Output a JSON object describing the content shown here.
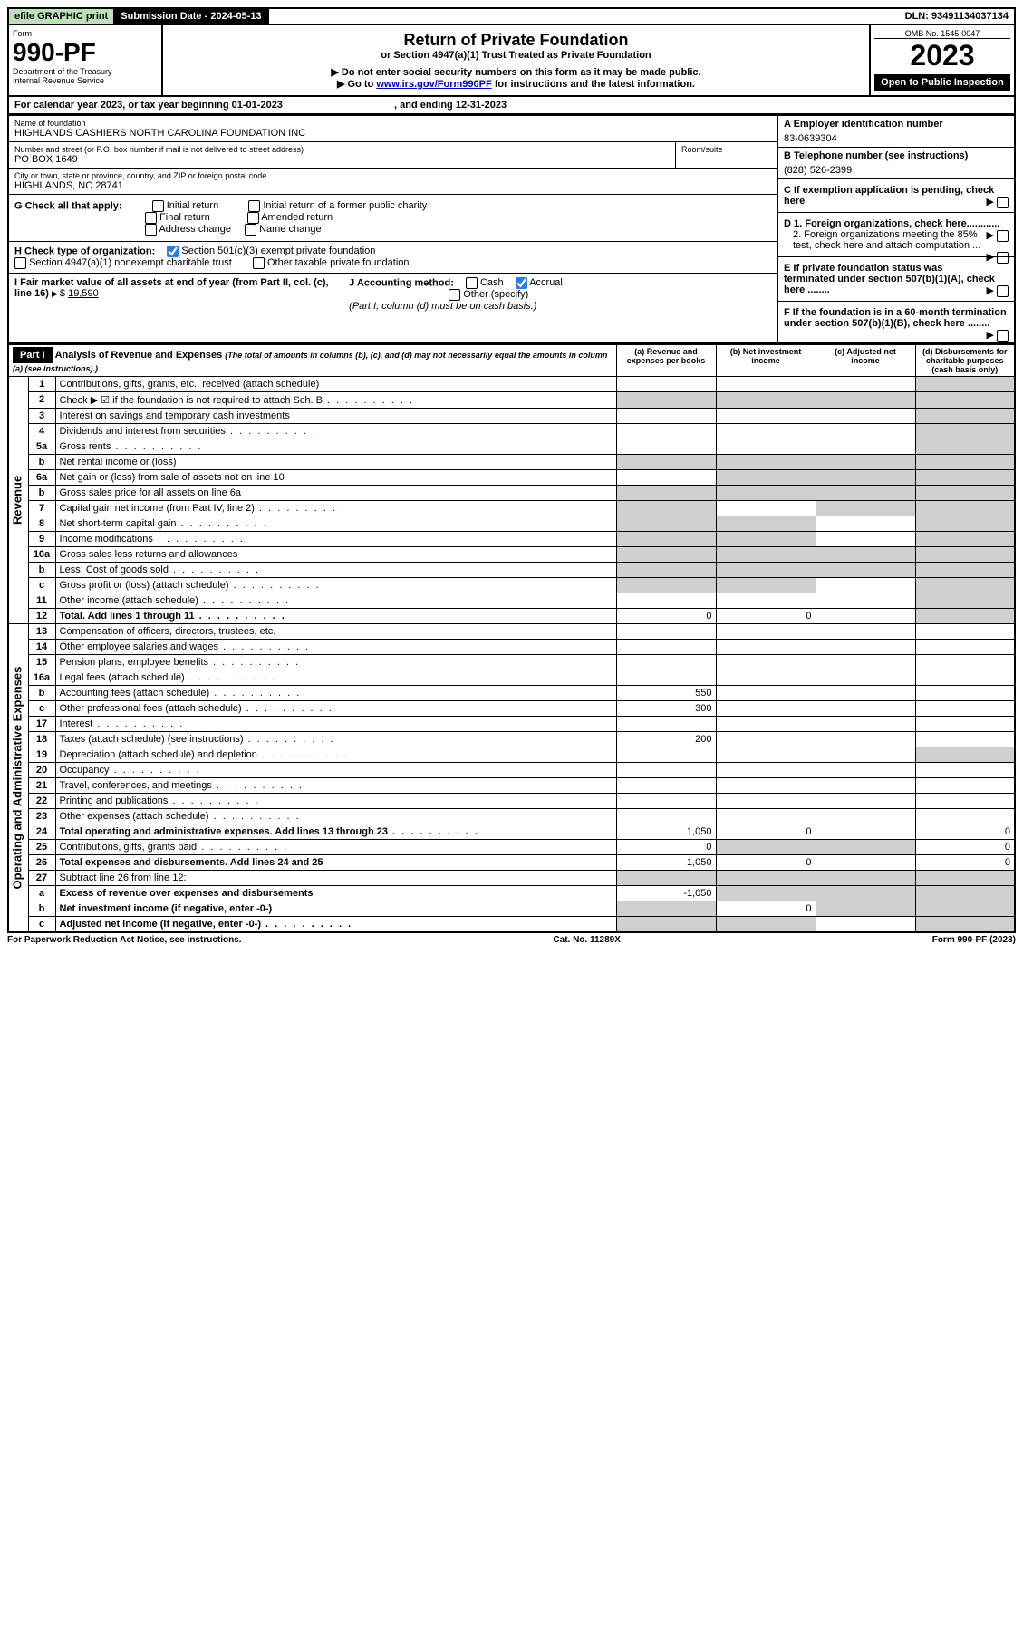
{
  "topbar": {
    "efile": "efile GRAPHIC print",
    "submission_label": "Submission Date - ",
    "submission_date": "2024-05-13",
    "dln_label": "DLN: ",
    "dln": "93491134037134"
  },
  "header": {
    "form_word": "Form",
    "form_no": "990-PF",
    "dept": "Department of the Treasury",
    "irs": "Internal Revenue Service",
    "title": "Return of Private Foundation",
    "subtitle": "or Section 4947(a)(1) Trust Treated as Private Foundation",
    "note1": "▶ Do not enter social security numbers on this form as it may be made public.",
    "note2_pre": "▶ Go to ",
    "note2_link": "www.irs.gov/Form990PF",
    "note2_post": " for instructions and the latest information.",
    "omb": "OMB No. 1545-0047",
    "year": "2023",
    "open": "Open to Public Inspection"
  },
  "calendar": {
    "text_pre": "For calendar year 2023, or tax year beginning ",
    "begin": "01-01-2023",
    "mid": " , and ending ",
    "end": "12-31-2023"
  },
  "ident": {
    "name_label": "Name of foundation",
    "name": "HIGHLANDS CASHIERS NORTH CAROLINA FOUNDATION INC",
    "addr_label": "Number and street (or P.O. box number if mail is not delivered to street address)",
    "addr": "PO BOX 1649",
    "room_label": "Room/suite",
    "room": "",
    "city_label": "City or town, state or province, country, and ZIP or foreign postal code",
    "city": "HIGHLANDS, NC  28741",
    "ein_label": "A Employer identification number",
    "ein": "83-0639304",
    "phone_label": "B Telephone number (see instructions)",
    "phone": "(828) 526-2399",
    "c_label": "C If exemption application is pending, check here",
    "d1": "D 1. Foreign organizations, check here............",
    "d2": "2. Foreign organizations meeting the 85% test, check here and attach computation ...",
    "e": "E If private foundation status was terminated under section 507(b)(1)(A), check here ........",
    "f": "F If the foundation is in a 60-month termination under section 507(b)(1)(B), check here ........"
  },
  "g": {
    "label": "G Check all that apply:",
    "initial": "Initial return",
    "final": "Final return",
    "address": "Address change",
    "initial_former": "Initial return of a former public charity",
    "amended": "Amended return",
    "name_change": "Name change"
  },
  "h": {
    "label": "H Check type of organization:",
    "opt1": "Section 501(c)(3) exempt private foundation",
    "opt2": "Section 4947(a)(1) nonexempt charitable trust",
    "opt3": "Other taxable private foundation"
  },
  "i": {
    "label": "I Fair market value of all assets at end of year (from Part II, col. (c), line 16)",
    "arrow": "▶$",
    "value": "19,590"
  },
  "j": {
    "label": "J Accounting method:",
    "cash": "Cash",
    "accrual": "Accrual",
    "other": "Other (specify)",
    "note": "(Part I, column (d) must be on cash basis.)"
  },
  "part1": {
    "hdr": "Part I",
    "title": "Analysis of Revenue and Expenses",
    "sub": "(The total of amounts in columns (b), (c), and (d) may not necessarily equal the amounts in column (a) (see instructions).)",
    "cols": {
      "a": "(a) Revenue and expenses per books",
      "b": "(b) Net investment income",
      "c": "(c) Adjusted net income",
      "d": "(d) Disbursements for charitable purposes (cash basis only)"
    }
  },
  "sections": {
    "revenue": "Revenue",
    "opex": "Operating and Administrative Expenses"
  },
  "lines": [
    {
      "no": "1",
      "desc": "Contributions, gifts, grants, etc., received (attach schedule)",
      "a": "",
      "b": "",
      "c": "",
      "d": "",
      "shade": [
        "d"
      ]
    },
    {
      "no": "2",
      "desc": "Check ▶ ☑ if the foundation is not required to attach Sch. B",
      "dots": true,
      "a": "",
      "b": "",
      "c": "",
      "d": "",
      "shade": [
        "a",
        "b",
        "c",
        "d"
      ]
    },
    {
      "no": "3",
      "desc": "Interest on savings and temporary cash investments",
      "a": "",
      "b": "",
      "c": "",
      "d": "",
      "shade": [
        "d"
      ]
    },
    {
      "no": "4",
      "desc": "Dividends and interest from securities",
      "dots": true,
      "a": "",
      "b": "",
      "c": "",
      "d": "",
      "shade": [
        "d"
      ]
    },
    {
      "no": "5a",
      "desc": "Gross rents",
      "dots": true,
      "a": "",
      "b": "",
      "c": "",
      "d": "",
      "shade": [
        "d"
      ]
    },
    {
      "no": "b",
      "desc": "Net rental income or (loss)",
      "a": "",
      "b": "",
      "c": "",
      "d": "",
      "shade": [
        "a",
        "b",
        "c",
        "d"
      ]
    },
    {
      "no": "6a",
      "desc": "Net gain or (loss) from sale of assets not on line 10",
      "a": "",
      "b": "",
      "c": "",
      "d": "",
      "shade": [
        "b",
        "c",
        "d"
      ]
    },
    {
      "no": "b",
      "desc": "Gross sales price for all assets on line 6a",
      "a": "",
      "b": "",
      "c": "",
      "d": "",
      "shade": [
        "a",
        "b",
        "c",
        "d"
      ]
    },
    {
      "no": "7",
      "desc": "Capital gain net income (from Part IV, line 2)",
      "dots": true,
      "a": "",
      "b": "",
      "c": "",
      "d": "",
      "shade": [
        "a",
        "c",
        "d"
      ]
    },
    {
      "no": "8",
      "desc": "Net short-term capital gain",
      "dots": true,
      "a": "",
      "b": "",
      "c": "",
      "d": "",
      "shade": [
        "a",
        "b",
        "d"
      ]
    },
    {
      "no": "9",
      "desc": "Income modifications",
      "dots": true,
      "a": "",
      "b": "",
      "c": "",
      "d": "",
      "shade": [
        "a",
        "b",
        "d"
      ]
    },
    {
      "no": "10a",
      "desc": "Gross sales less returns and allowances",
      "a": "",
      "b": "",
      "c": "",
      "d": "",
      "shade": [
        "a",
        "b",
        "c",
        "d"
      ]
    },
    {
      "no": "b",
      "desc": "Less: Cost of goods sold",
      "dots": true,
      "a": "",
      "b": "",
      "c": "",
      "d": "",
      "shade": [
        "a",
        "b",
        "c",
        "d"
      ]
    },
    {
      "no": "c",
      "desc": "Gross profit or (loss) (attach schedule)",
      "dots": true,
      "a": "",
      "b": "",
      "c": "",
      "d": "",
      "shade": [
        "a",
        "b",
        "d"
      ]
    },
    {
      "no": "11",
      "desc": "Other income (attach schedule)",
      "dots": true,
      "a": "",
      "b": "",
      "c": "",
      "d": "",
      "shade": [
        "d"
      ]
    },
    {
      "no": "12",
      "desc": "Total. Add lines 1 through 11",
      "dots": true,
      "bold": true,
      "a": "0",
      "b": "0",
      "c": "",
      "d": "",
      "shade": [
        "d"
      ]
    },
    {
      "no": "13",
      "desc": "Compensation of officers, directors, trustees, etc.",
      "a": "",
      "b": "",
      "c": "",
      "d": ""
    },
    {
      "no": "14",
      "desc": "Other employee salaries and wages",
      "dots": true,
      "a": "",
      "b": "",
      "c": "",
      "d": ""
    },
    {
      "no": "15",
      "desc": "Pension plans, employee benefits",
      "dots": true,
      "a": "",
      "b": "",
      "c": "",
      "d": ""
    },
    {
      "no": "16a",
      "desc": "Legal fees (attach schedule)",
      "dots": true,
      "a": "",
      "b": "",
      "c": "",
      "d": ""
    },
    {
      "no": "b",
      "desc": "Accounting fees (attach schedule)",
      "dots": true,
      "a": "550",
      "b": "",
      "c": "",
      "d": ""
    },
    {
      "no": "c",
      "desc": "Other professional fees (attach schedule)",
      "dots": true,
      "a": "300",
      "b": "",
      "c": "",
      "d": ""
    },
    {
      "no": "17",
      "desc": "Interest",
      "dots": true,
      "a": "",
      "b": "",
      "c": "",
      "d": ""
    },
    {
      "no": "18",
      "desc": "Taxes (attach schedule) (see instructions)",
      "dots": true,
      "a": "200",
      "b": "",
      "c": "",
      "d": ""
    },
    {
      "no": "19",
      "desc": "Depreciation (attach schedule) and depletion",
      "dots": true,
      "a": "",
      "b": "",
      "c": "",
      "d": "",
      "shade": [
        "d"
      ]
    },
    {
      "no": "20",
      "desc": "Occupancy",
      "dots": true,
      "a": "",
      "b": "",
      "c": "",
      "d": ""
    },
    {
      "no": "21",
      "desc": "Travel, conferences, and meetings",
      "dots": true,
      "a": "",
      "b": "",
      "c": "",
      "d": ""
    },
    {
      "no": "22",
      "desc": "Printing and publications",
      "dots": true,
      "a": "",
      "b": "",
      "c": "",
      "d": ""
    },
    {
      "no": "23",
      "desc": "Other expenses (attach schedule)",
      "dots": true,
      "a": "",
      "b": "",
      "c": "",
      "d": ""
    },
    {
      "no": "24",
      "desc": "Total operating and administrative expenses. Add lines 13 through 23",
      "dots": true,
      "bold": true,
      "a": "1,050",
      "b": "0",
      "c": "",
      "d": "0"
    },
    {
      "no": "25",
      "desc": "Contributions, gifts, grants paid",
      "dots": true,
      "a": "0",
      "b": "",
      "c": "",
      "d": "0",
      "shade": [
        "b",
        "c"
      ]
    },
    {
      "no": "26",
      "desc": "Total expenses and disbursements. Add lines 24 and 25",
      "bold": true,
      "a": "1,050",
      "b": "0",
      "c": "",
      "d": "0"
    },
    {
      "no": "27",
      "desc": "Subtract line 26 from line 12:",
      "a": "",
      "b": "",
      "c": "",
      "d": "",
      "shade": [
        "a",
        "b",
        "c",
        "d"
      ]
    },
    {
      "no": "a",
      "desc": "Excess of revenue over expenses and disbursements",
      "bold": true,
      "a": "-1,050",
      "b": "",
      "c": "",
      "d": "",
      "shade": [
        "b",
        "c",
        "d"
      ]
    },
    {
      "no": "b",
      "desc": "Net investment income (if negative, enter -0-)",
      "bold": true,
      "a": "",
      "b": "0",
      "c": "",
      "d": "",
      "shade": [
        "a",
        "c",
        "d"
      ]
    },
    {
      "no": "c",
      "desc": "Adjusted net income (if negative, enter -0-)",
      "dots": true,
      "bold": true,
      "a": "",
      "b": "",
      "c": "",
      "d": "",
      "shade": [
        "a",
        "b",
        "d"
      ]
    }
  ],
  "footer": {
    "left": "For Paperwork Reduction Act Notice, see instructions.",
    "mid": "Cat. No. 11289X",
    "right": "Form 990-PF (2023)"
  }
}
